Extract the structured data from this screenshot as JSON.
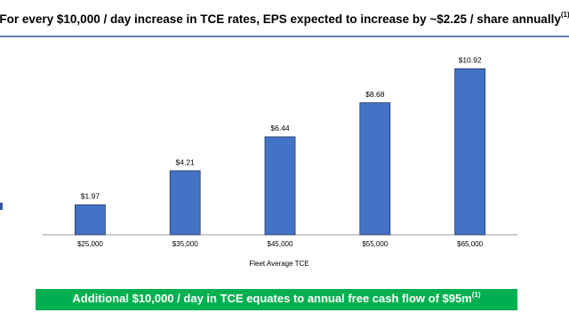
{
  "chart_data": {
    "type": "bar",
    "title": "For every $10,000 / day increase in TCE rates, EPS expected to increase by ~$2.25 / share annually",
    "title_note": "(1)",
    "categories": [
      "$25,000",
      "$35,000",
      "$45,000",
      "$55,000",
      "$65,000"
    ],
    "values": [
      1.97,
      4.21,
      6.44,
      8.68,
      10.92
    ],
    "value_labels": [
      "$1.97",
      "$4.21",
      "$6.44",
      "$8.68",
      "$10.92"
    ],
    "color": "#4472c4",
    "x_label": "Fleet Average TCE",
    "footer": "Additional $10,000 / day in TCE equates to annual free cash flow of $95m",
    "footer_note": "(1)",
    "footer_color": "#00b050"
  }
}
